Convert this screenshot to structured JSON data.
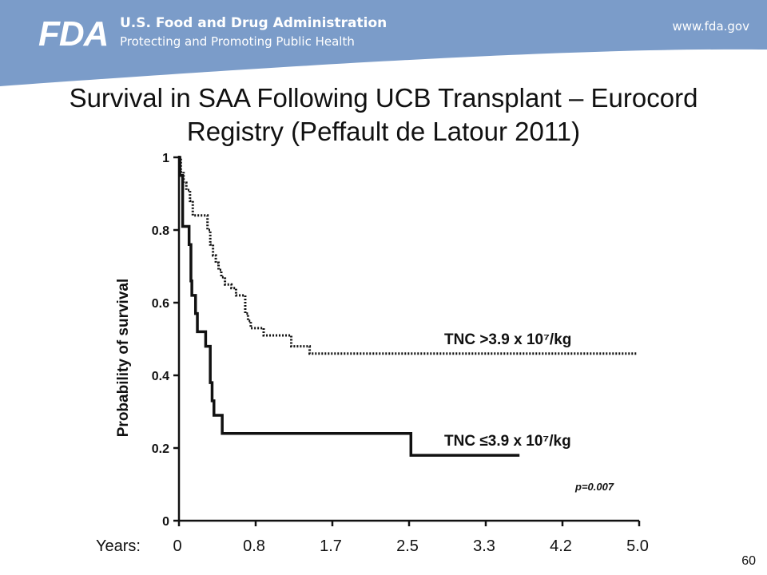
{
  "header": {
    "logo_text": "FDA",
    "agency_name": "U.S. Food and Drug Administration",
    "tagline": "Protecting and Promoting Public Health",
    "website": "www.fda.gov",
    "banner_color": "#7b9cc9"
  },
  "slide": {
    "title_line1": "Survival in SAA Following UCB Transplant – Eurocord",
    "title_line2": "Registry (Peffault de Latour 2011)",
    "slide_number": "60"
  },
  "chart_data": {
    "type": "line",
    "ylabel": "Probability of survival",
    "xlabel_prefix": "Years:",
    "x_tick_labels": [
      "0",
      "0.8",
      "1.7",
      "2.5",
      "3.3",
      "4.2",
      "5.0"
    ],
    "y_ticks": [
      "0",
      "0.2",
      "0.4",
      "0.6",
      "0.8",
      "1"
    ],
    "xlim": [
      0,
      5.0
    ],
    "ylim": [
      0,
      1
    ],
    "p_value": "p=0.007",
    "series": [
      {
        "name": "TNC >3.9 x 10⁷/kg",
        "style": "dotted",
        "step_points": [
          [
            0,
            1.0
          ],
          [
            0.02,
            0.96
          ],
          [
            0.05,
            0.93
          ],
          [
            0.08,
            0.91
          ],
          [
            0.12,
            0.88
          ],
          [
            0.15,
            0.84
          ],
          [
            0.31,
            0.8
          ],
          [
            0.34,
            0.76
          ],
          [
            0.37,
            0.73
          ],
          [
            0.4,
            0.71
          ],
          [
            0.43,
            0.69
          ],
          [
            0.46,
            0.67
          ],
          [
            0.5,
            0.65
          ],
          [
            0.57,
            0.64
          ],
          [
            0.62,
            0.62
          ],
          [
            0.72,
            0.57
          ],
          [
            0.75,
            0.55
          ],
          [
            0.78,
            0.53
          ],
          [
            0.92,
            0.51
          ],
          [
            1.22,
            0.48
          ],
          [
            1.42,
            0.46
          ],
          [
            4.98,
            0.46
          ]
        ]
      },
      {
        "name": "TNC ≤3.9 x 10⁷/kg",
        "style": "solid",
        "step_points": [
          [
            0,
            1.0
          ],
          [
            0.01,
            0.95
          ],
          [
            0.04,
            0.81
          ],
          [
            0.11,
            0.76
          ],
          [
            0.13,
            0.66
          ],
          [
            0.14,
            0.62
          ],
          [
            0.18,
            0.57
          ],
          [
            0.2,
            0.52
          ],
          [
            0.29,
            0.48
          ],
          [
            0.34,
            0.38
          ],
          [
            0.36,
            0.33
          ],
          [
            0.38,
            0.29
          ],
          [
            0.47,
            0.24
          ],
          [
            2.52,
            0.18
          ],
          [
            3.7,
            0.18
          ]
        ]
      }
    ]
  }
}
